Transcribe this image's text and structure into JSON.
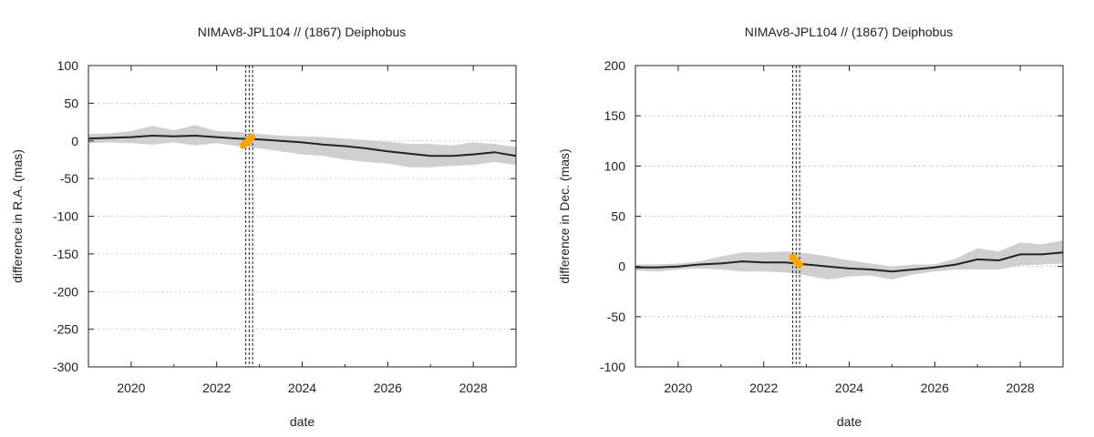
{
  "chart_data": [
    {
      "type": "line",
      "title": "NIMAv8-JPL104 // (1867) Deiphobus",
      "xlabel": "date",
      "ylabel": "difference in R.A. (mas)",
      "xlim": [
        2019,
        2029
      ],
      "ylim": [
        -300,
        100
      ],
      "xticks": [
        2020,
        2022,
        2024,
        2026,
        2028
      ],
      "yticks": [
        -300,
        -250,
        -200,
        -150,
        -100,
        -50,
        0,
        50,
        100
      ],
      "grid": true,
      "band_color": "#cfcfcf",
      "line_color": "#222222",
      "obs_color": "#ffa500",
      "vlines": [
        2022.68,
        2022.76,
        2022.84
      ],
      "series": [
        {
          "x": [
            2019.0,
            2019.5,
            2020.0,
            2020.5,
            2021.0,
            2021.5,
            2022.0,
            2022.5,
            2023.0,
            2023.5,
            2024.0,
            2024.5,
            2025.0,
            2025.5,
            2026.0,
            2026.5,
            2027.0,
            2027.5,
            2028.0,
            2028.5,
            2029.0
          ],
          "y": [
            3,
            4,
            5,
            7,
            6,
            7,
            5,
            3,
            2,
            0,
            -2,
            -5,
            -7,
            -10,
            -14,
            -17,
            -20,
            -20,
            -18,
            -15,
            -20
          ],
          "upper": [
            9,
            10,
            13,
            20,
            14,
            21,
            13,
            12,
            9,
            7,
            6,
            5,
            3,
            1,
            -1,
            -4,
            -4,
            -6,
            -2,
            -4,
            -8
          ],
          "lower": [
            -3,
            -2,
            -3,
            -5,
            -2,
            -6,
            -3,
            -7,
            -10,
            -14,
            -18,
            -20,
            -25,
            -28,
            -30,
            -35,
            -35,
            -33,
            -32,
            -28,
            -32
          ]
        }
      ],
      "observations": {
        "x": [
          2022.62,
          2022.66,
          2022.7,
          2022.74,
          2022.78,
          2022.82
        ],
        "y": [
          -6,
          -3,
          -2,
          0,
          3,
          5
        ]
      }
    },
    {
      "type": "line",
      "title": "NIMAv8-JPL104 // (1867) Deiphobus",
      "xlabel": "date",
      "ylabel": "difference in Dec. (mas)",
      "xlim": [
        2019,
        2029
      ],
      "ylim": [
        -100,
        200
      ],
      "xticks": [
        2020,
        2022,
        2024,
        2026,
        2028
      ],
      "yticks": [
        -100,
        -50,
        0,
        50,
        100,
        150,
        200
      ],
      "grid": true,
      "band_color": "#cfcfcf",
      "line_color": "#222222",
      "obs_color": "#ffa500",
      "vlines": [
        2022.68,
        2022.76,
        2022.84
      ],
      "series": [
        {
          "x": [
            2019.0,
            2019.5,
            2020.0,
            2020.5,
            2021.0,
            2021.5,
            2022.0,
            2022.5,
            2023.0,
            2023.5,
            2024.0,
            2024.5,
            2025.0,
            2025.5,
            2026.0,
            2026.5,
            2027.0,
            2027.5,
            2028.0,
            2028.5,
            2029.0
          ],
          "y": [
            -1,
            -1,
            0,
            2,
            3,
            5,
            4,
            4,
            2,
            0,
            -2,
            -3,
            -5,
            -3,
            -1,
            2,
            7,
            6,
            12,
            12,
            14
          ],
          "upper": [
            2,
            2,
            3,
            5,
            10,
            14,
            14,
            15,
            13,
            10,
            6,
            3,
            0,
            2,
            2,
            8,
            18,
            15,
            24,
            22,
            26
          ],
          "lower": [
            -4,
            -5,
            -3,
            -2,
            -3,
            -5,
            -5,
            -6,
            -9,
            -13,
            -10,
            -9,
            -13,
            -8,
            -5,
            -3,
            -3,
            -3,
            1,
            2,
            3
          ]
        }
      ],
      "observations": {
        "x": [
          2022.68,
          2022.72,
          2022.76,
          2022.8,
          2022.84
        ],
        "y": [
          9,
          7,
          5,
          3,
          2
        ]
      }
    }
  ]
}
